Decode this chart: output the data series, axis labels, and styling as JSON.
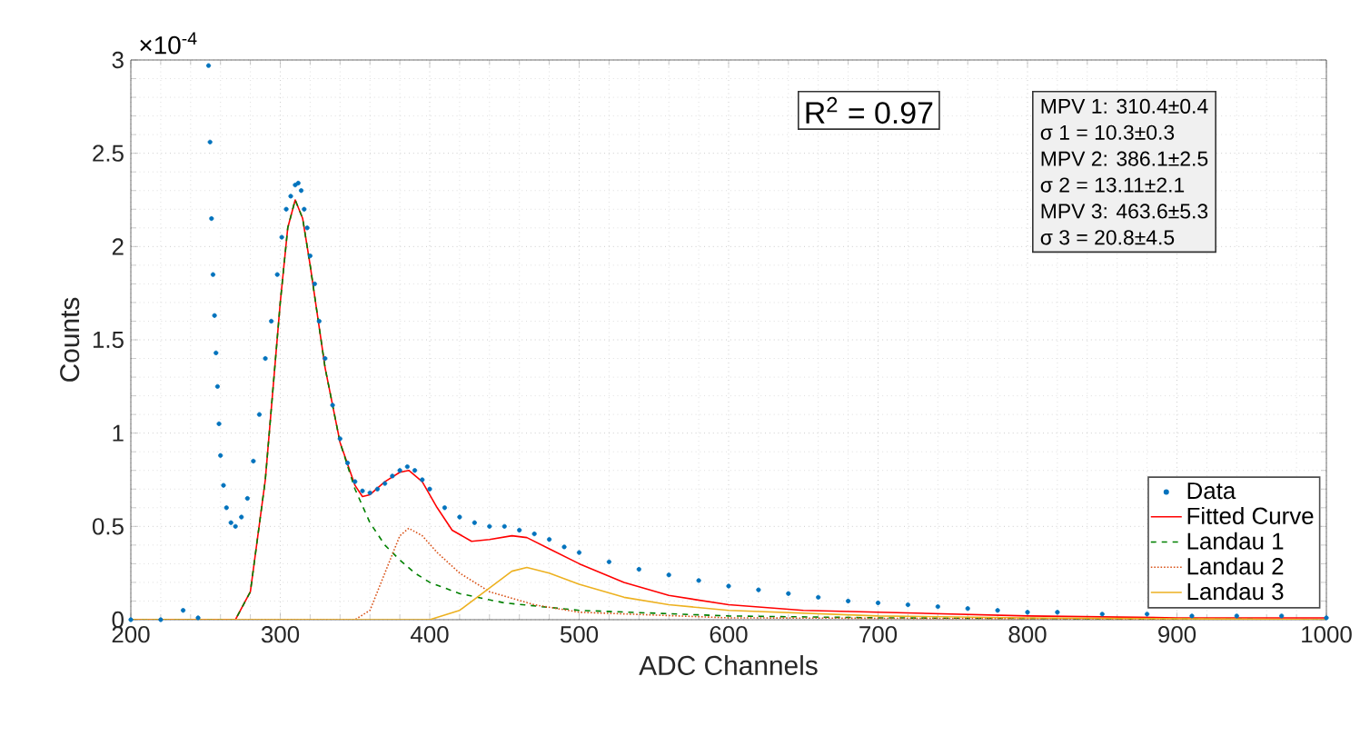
{
  "chart_data": {
    "type": "line",
    "xlabel": "ADC Channels",
    "ylabel": "Counts",
    "xlim": [
      200,
      1000
    ],
    "ylim": [
      0,
      3
    ],
    "xticks": [
      200,
      300,
      400,
      500,
      600,
      700,
      800,
      900,
      1000
    ],
    "yticks": [
      0,
      0.5,
      1,
      1.5,
      2,
      2.5,
      3
    ],
    "grid": true,
    "legend": "bottom right",
    "annotations": [
      "×10$^{-4}$",
      "R$^{2}$ = 0.97",
      "MPV 1: 310.4±0.4",
      "σ 1 = 10.3±0.3",
      "MPV 2: 386.1±2.5",
      "σ 2 = 13.11±2.1",
      "MPV 3: 463.6±5.3",
      "σ 3 = 20.8±4.5"
    ],
    "series": [
      {
        "name": "Data",
        "type": "scatter",
        "marker": "circle",
        "color": "#0072bd",
        "x": [
          200,
          220,
          235,
          245,
          252,
          253,
          254,
          255,
          256,
          257,
          258,
          259,
          260,
          262,
          264,
          267,
          270,
          274,
          278,
          282,
          286,
          290,
          294,
          298,
          301,
          304,
          307,
          310,
          312,
          314,
          316,
          318,
          320,
          323,
          326,
          330,
          335,
          340,
          345,
          350,
          355,
          360,
          365,
          370,
          375,
          380,
          385,
          390,
          395,
          400,
          410,
          420,
          430,
          440,
          450,
          460,
          470,
          480,
          490,
          500,
          520,
          540,
          560,
          580,
          600,
          620,
          640,
          660,
          680,
          700,
          720,
          740,
          760,
          780,
          800,
          820,
          850,
          880,
          910,
          940,
          970,
          1000
        ],
        "values": [
          0,
          0,
          0.05,
          0.01,
          2.97,
          2.56,
          2.15,
          1.85,
          1.63,
          1.43,
          1.25,
          1.05,
          0.88,
          0.72,
          0.6,
          0.52,
          0.5,
          0.55,
          0.65,
          0.85,
          1.1,
          1.4,
          1.6,
          1.85,
          2.05,
          2.2,
          2.27,
          2.33,
          2.34,
          2.3,
          2.2,
          2.1,
          1.95,
          1.8,
          1.6,
          1.4,
          1.15,
          0.97,
          0.84,
          0.74,
          0.69,
          0.68,
          0.7,
          0.73,
          0.77,
          0.8,
          0.82,
          0.8,
          0.75,
          0.7,
          0.6,
          0.55,
          0.52,
          0.5,
          0.5,
          0.48,
          0.46,
          0.43,
          0.39,
          0.36,
          0.31,
          0.27,
          0.24,
          0.21,
          0.18,
          0.16,
          0.14,
          0.12,
          0.1,
          0.09,
          0.08,
          0.07,
          0.06,
          0.05,
          0.04,
          0.04,
          0.03,
          0.03,
          0.02,
          0.02,
          0.02,
          0.01
        ]
      },
      {
        "name": "Fitted Curve",
        "line_style": "solid",
        "color": "#ff0000",
        "x": [
          200,
          270,
          280,
          290,
          300,
          305,
          310,
          315,
          320,
          330,
          340,
          350,
          355,
          360,
          370,
          380,
          386,
          395,
          405,
          415,
          428,
          440,
          455,
          465,
          480,
          500,
          530,
          560,
          600,
          650,
          700,
          800,
          900,
          1000
        ],
        "values": [
          0,
          0,
          0.15,
          0.75,
          1.7,
          2.1,
          2.25,
          2.15,
          1.9,
          1.35,
          0.95,
          0.72,
          0.66,
          0.67,
          0.74,
          0.79,
          0.8,
          0.74,
          0.6,
          0.48,
          0.42,
          0.43,
          0.45,
          0.44,
          0.38,
          0.3,
          0.2,
          0.13,
          0.08,
          0.05,
          0.04,
          0.02,
          0.01,
          0.01
        ]
      },
      {
        "name": "Landau 1",
        "line_style": "dashed",
        "color": "#008000",
        "x": [
          200,
          270,
          280,
          290,
          300,
          305,
          310,
          315,
          320,
          330,
          340,
          350,
          360,
          370,
          380,
          390,
          400,
          420,
          450,
          500,
          600,
          700,
          1000
        ],
        "values": [
          0,
          0,
          0.15,
          0.75,
          1.7,
          2.1,
          2.25,
          2.15,
          1.9,
          1.35,
          0.95,
          0.7,
          0.52,
          0.4,
          0.32,
          0.25,
          0.2,
          0.14,
          0.09,
          0.05,
          0.02,
          0.01,
          0
        ]
      },
      {
        "name": "Landau 2",
        "line_style": "dotted",
        "color": "#d95319",
        "x": [
          200,
          350,
          360,
          370,
          380,
          386,
          395,
          405,
          420,
          440,
          470,
          500,
          600,
          1000
        ],
        "values": [
          0,
          0,
          0.05,
          0.25,
          0.45,
          0.49,
          0.45,
          0.36,
          0.25,
          0.15,
          0.08,
          0.04,
          0.01,
          0
        ]
      },
      {
        "name": "Landau 3",
        "line_style": "solid",
        "color": "#edb120",
        "x": [
          200,
          400,
          420,
          440,
          455,
          465,
          480,
          500,
          530,
          560,
          600,
          700,
          800,
          1000
        ],
        "values": [
          0,
          0,
          0.05,
          0.17,
          0.26,
          0.28,
          0.25,
          0.19,
          0.12,
          0.08,
          0.05,
          0.02,
          0.01,
          0
        ]
      }
    ]
  }
}
